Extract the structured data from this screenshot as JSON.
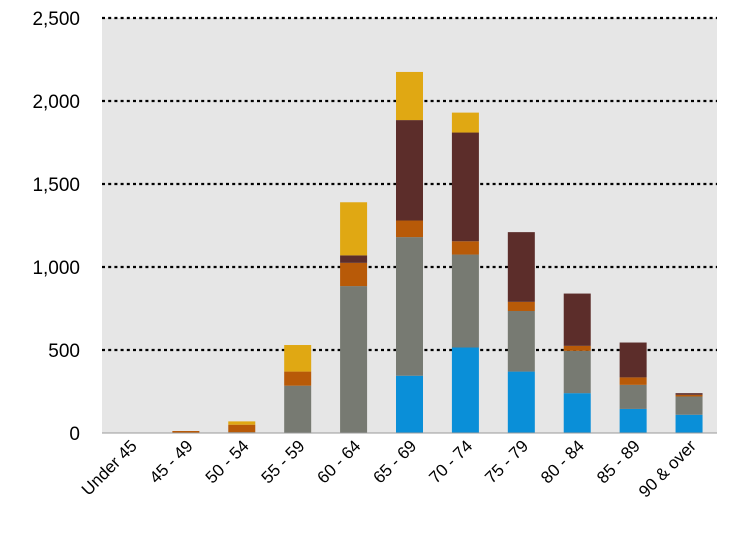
{
  "chart_data": {
    "type": "bar",
    "stacked": true,
    "categories": [
      "Under 45",
      "45 - 49",
      "50 - 54",
      "55 - 59",
      "60 - 64",
      "65 - 69",
      "70 - 74",
      "75 - 79",
      "80 - 84",
      "85 - 89",
      "90 & over"
    ],
    "series": [
      {
        "color": "#0a8fd8",
        "values": [
          0,
          0,
          0,
          0,
          0,
          345,
          515,
          370,
          240,
          145,
          110
        ]
      },
      {
        "color": "#777a72",
        "values": [
          0,
          0,
          5,
          285,
          885,
          835,
          560,
          365,
          255,
          145,
          110
        ]
      },
      {
        "color": "#b85a08",
        "values": [
          0,
          12,
          45,
          85,
          140,
          100,
          80,
          55,
          30,
          45,
          10
        ]
      },
      {
        "color": "#5c2d2a",
        "values": [
          0,
          0,
          0,
          0,
          45,
          605,
          655,
          420,
          315,
          210,
          10
        ]
      },
      {
        "color": "#e0a813",
        "values": [
          0,
          0,
          20,
          160,
          320,
          290,
          120,
          0,
          0,
          0,
          0
        ]
      }
    ],
    "yticks": [
      "0",
      "500",
      "1,000",
      "1,500",
      "2,000",
      "2,500"
    ],
    "ylim": [
      0,
      2500
    ],
    "grid": true,
    "colors": {
      "plot_background": "#e6e6e6",
      "gridline": "#000000"
    }
  }
}
